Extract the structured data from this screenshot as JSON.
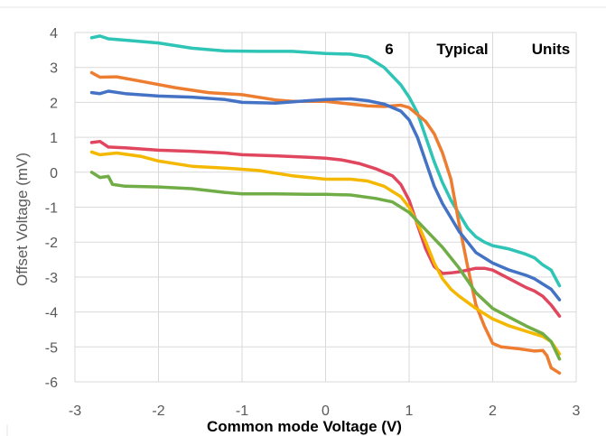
{
  "chart_data": {
    "type": "line",
    "title": "",
    "annotation": [
      "6",
      "Typical",
      "Units"
    ],
    "xlabel": "Common mode Voltage (V)",
    "ylabel": "Offset Voltage (mV)",
    "xlim": [
      -3,
      3
    ],
    "ylim": [
      -6,
      4
    ],
    "xticks": [
      -3,
      -2,
      -1,
      0,
      1,
      2,
      3
    ],
    "yticks": [
      4,
      3,
      2,
      1,
      0,
      -1,
      -2,
      -3,
      -4,
      -5,
      -6
    ],
    "grid": true,
    "series": [
      {
        "color": "#2EC4B6",
        "points": [
          [
            -2.8,
            3.85
          ],
          [
            -2.7,
            3.9
          ],
          [
            -2.6,
            3.82
          ],
          [
            -2.4,
            3.78
          ],
          [
            -2.0,
            3.7
          ],
          [
            -1.6,
            3.55
          ],
          [
            -1.2,
            3.47
          ],
          [
            -0.8,
            3.46
          ],
          [
            -0.4,
            3.46
          ],
          [
            0.0,
            3.4
          ],
          [
            0.3,
            3.38
          ],
          [
            0.5,
            3.3
          ],
          [
            0.7,
            3.0
          ],
          [
            0.9,
            2.5
          ],
          [
            1.0,
            2.15
          ],
          [
            1.1,
            1.7
          ],
          [
            1.2,
            1.0
          ],
          [
            1.3,
            0.3
          ],
          [
            1.4,
            -0.3
          ],
          [
            1.5,
            -0.8
          ],
          [
            1.6,
            -1.2
          ],
          [
            1.7,
            -1.6
          ],
          [
            1.8,
            -1.85
          ],
          [
            1.9,
            -2.0
          ],
          [
            2.0,
            -2.1
          ],
          [
            2.2,
            -2.2
          ],
          [
            2.4,
            -2.35
          ],
          [
            2.5,
            -2.45
          ],
          [
            2.6,
            -2.65
          ],
          [
            2.7,
            -2.8
          ],
          [
            2.8,
            -3.25
          ]
        ]
      },
      {
        "color": "#ED7D31",
        "points": [
          [
            -2.8,
            2.85
          ],
          [
            -2.7,
            2.72
          ],
          [
            -2.5,
            2.73
          ],
          [
            -2.2,
            2.6
          ],
          [
            -1.8,
            2.42
          ],
          [
            -1.4,
            2.28
          ],
          [
            -1.0,
            2.22
          ],
          [
            -0.6,
            2.07
          ],
          [
            -0.4,
            2.03
          ],
          [
            0.0,
            2.03
          ],
          [
            0.3,
            1.95
          ],
          [
            0.5,
            1.9
          ],
          [
            0.7,
            1.88
          ],
          [
            0.9,
            1.92
          ],
          [
            1.0,
            1.85
          ],
          [
            1.1,
            1.65
          ],
          [
            1.2,
            1.45
          ],
          [
            1.3,
            1.1
          ],
          [
            1.4,
            0.55
          ],
          [
            1.5,
            -0.2
          ],
          [
            1.6,
            -1.5
          ],
          [
            1.7,
            -2.7
          ],
          [
            1.8,
            -3.8
          ],
          [
            1.9,
            -4.4
          ],
          [
            2.0,
            -4.9
          ],
          [
            2.1,
            -5.0
          ],
          [
            2.3,
            -5.05
          ],
          [
            2.5,
            -5.12
          ],
          [
            2.6,
            -5.1
          ],
          [
            2.65,
            -5.25
          ],
          [
            2.7,
            -5.6
          ],
          [
            2.8,
            -5.75
          ]
        ]
      },
      {
        "color": "#4472C4",
        "points": [
          [
            -2.8,
            2.28
          ],
          [
            -2.7,
            2.25
          ],
          [
            -2.6,
            2.32
          ],
          [
            -2.4,
            2.25
          ],
          [
            -2.0,
            2.18
          ],
          [
            -1.6,
            2.15
          ],
          [
            -1.2,
            2.08
          ],
          [
            -1.0,
            2.0
          ],
          [
            -0.6,
            1.98
          ],
          [
            -0.2,
            2.05
          ],
          [
            0.0,
            2.08
          ],
          [
            0.3,
            2.1
          ],
          [
            0.5,
            2.05
          ],
          [
            0.7,
            1.95
          ],
          [
            0.9,
            1.75
          ],
          [
            1.0,
            1.5
          ],
          [
            1.1,
            1.0
          ],
          [
            1.2,
            0.3
          ],
          [
            1.3,
            -0.4
          ],
          [
            1.4,
            -0.9
          ],
          [
            1.5,
            -1.3
          ],
          [
            1.6,
            -1.7
          ],
          [
            1.7,
            -2.0
          ],
          [
            1.8,
            -2.3
          ],
          [
            1.9,
            -2.45
          ],
          [
            2.0,
            -2.6
          ],
          [
            2.2,
            -2.8
          ],
          [
            2.4,
            -2.95
          ],
          [
            2.5,
            -3.05
          ],
          [
            2.6,
            -3.2
          ],
          [
            2.7,
            -3.35
          ],
          [
            2.8,
            -3.65
          ]
        ]
      },
      {
        "color": "#E0475F",
        "points": [
          [
            -2.8,
            0.85
          ],
          [
            -2.7,
            0.88
          ],
          [
            -2.6,
            0.72
          ],
          [
            -2.4,
            0.7
          ],
          [
            -2.0,
            0.63
          ],
          [
            -1.6,
            0.6
          ],
          [
            -1.2,
            0.55
          ],
          [
            -1.0,
            0.5
          ],
          [
            -0.6,
            0.47
          ],
          [
            -0.2,
            0.43
          ],
          [
            0.0,
            0.4
          ],
          [
            0.2,
            0.35
          ],
          [
            0.4,
            0.25
          ],
          [
            0.6,
            0.1
          ],
          [
            0.8,
            -0.1
          ],
          [
            0.9,
            -0.35
          ],
          [
            1.0,
            -0.8
          ],
          [
            1.1,
            -1.5
          ],
          [
            1.2,
            -2.2
          ],
          [
            1.3,
            -2.7
          ],
          [
            1.4,
            -2.9
          ],
          [
            1.5,
            -2.88
          ],
          [
            1.6,
            -2.85
          ],
          [
            1.7,
            -2.8
          ],
          [
            1.8,
            -2.75
          ],
          [
            1.9,
            -2.75
          ],
          [
            2.0,
            -2.8
          ],
          [
            2.2,
            -3.05
          ],
          [
            2.4,
            -3.3
          ],
          [
            2.5,
            -3.4
          ],
          [
            2.6,
            -3.55
          ],
          [
            2.7,
            -3.8
          ],
          [
            2.8,
            -4.12
          ]
        ]
      },
      {
        "color": "#F5B800",
        "points": [
          [
            -2.8,
            0.58
          ],
          [
            -2.7,
            0.5
          ],
          [
            -2.5,
            0.55
          ],
          [
            -2.2,
            0.45
          ],
          [
            -2.0,
            0.32
          ],
          [
            -1.6,
            0.17
          ],
          [
            -1.2,
            0.12
          ],
          [
            -0.8,
            0.05
          ],
          [
            -0.4,
            -0.1
          ],
          [
            0.0,
            -0.2
          ],
          [
            0.3,
            -0.2
          ],
          [
            0.5,
            -0.25
          ],
          [
            0.7,
            -0.4
          ],
          [
            0.9,
            -0.7
          ],
          [
            1.0,
            -1.0
          ],
          [
            1.1,
            -1.45
          ],
          [
            1.2,
            -2.0
          ],
          [
            1.3,
            -2.6
          ],
          [
            1.4,
            -3.05
          ],
          [
            1.5,
            -3.35
          ],
          [
            1.6,
            -3.55
          ],
          [
            1.8,
            -3.9
          ],
          [
            2.0,
            -4.2
          ],
          [
            2.2,
            -4.4
          ],
          [
            2.4,
            -4.55
          ],
          [
            2.6,
            -4.7
          ],
          [
            2.7,
            -4.85
          ],
          [
            2.8,
            -5.2
          ]
        ]
      },
      {
        "color": "#70AD47",
        "points": [
          [
            -2.8,
            0.0
          ],
          [
            -2.7,
            -0.15
          ],
          [
            -2.6,
            -0.12
          ],
          [
            -2.55,
            -0.35
          ],
          [
            -2.4,
            -0.4
          ],
          [
            -2.0,
            -0.42
          ],
          [
            -1.6,
            -0.47
          ],
          [
            -1.2,
            -0.58
          ],
          [
            -1.0,
            -0.62
          ],
          [
            -0.6,
            -0.62
          ],
          [
            -0.2,
            -0.63
          ],
          [
            0.0,
            -0.63
          ],
          [
            0.3,
            -0.65
          ],
          [
            0.6,
            -0.75
          ],
          [
            0.8,
            -0.85
          ],
          [
            1.0,
            -1.15
          ],
          [
            1.2,
            -1.65
          ],
          [
            1.4,
            -2.15
          ],
          [
            1.6,
            -2.75
          ],
          [
            1.8,
            -3.45
          ],
          [
            2.0,
            -3.9
          ],
          [
            2.2,
            -4.15
          ],
          [
            2.4,
            -4.4
          ],
          [
            2.6,
            -4.62
          ],
          [
            2.7,
            -4.85
          ],
          [
            2.8,
            -5.35
          ]
        ]
      }
    ]
  }
}
